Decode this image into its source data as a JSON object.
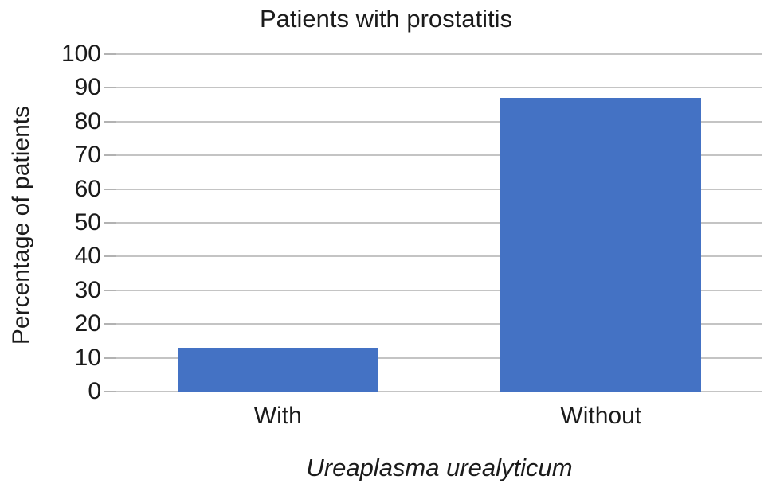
{
  "chart_data": {
    "type": "bar",
    "title": "Patients with prostatitis",
    "categories": [
      "With",
      "Without"
    ],
    "values": [
      13,
      87
    ],
    "xlabel": "Ureaplasma urealyticum",
    "ylabel": "Percentage of patients",
    "ylim": [
      0,
      100
    ],
    "ytick_step": 10,
    "ytick_labels": [
      "0",
      "10",
      "20",
      "30",
      "40",
      "50",
      "60",
      "70",
      "80",
      "90",
      "100"
    ],
    "grid": true,
    "legend": "none",
    "bar_color": "#4472C4",
    "gridline_color": "#c4c4c4",
    "tick_mark_color": "#b2b2b2",
    "text_color": "#1b1b1b"
  }
}
